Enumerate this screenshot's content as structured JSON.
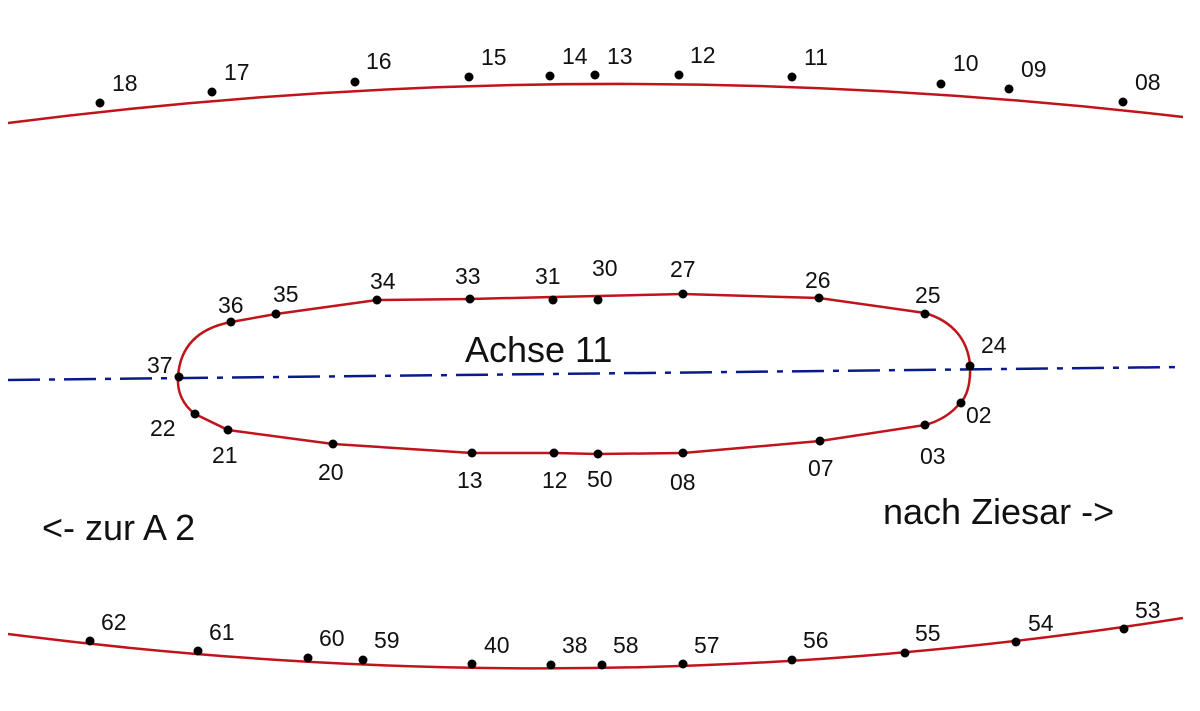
{
  "colors": {
    "road_line": "#c0141c",
    "axis_line": "#0a1a8a",
    "point": "#000000",
    "text": "#111111",
    "background": "#ffffff"
  },
  "axis_label": "Achse 11",
  "direction_left": "<- zur A 2",
  "direction_right": "nach Ziesar ->",
  "top_curve_points": [
    "18",
    "17",
    "16",
    "15",
    "14",
    "13",
    "12",
    "11",
    "10",
    "09",
    "08"
  ],
  "loop_top_points": [
    "36",
    "35",
    "34",
    "33",
    "31",
    "30",
    "27",
    "26",
    "25"
  ],
  "loop_end_points": [
    "37",
    "24"
  ],
  "loop_bottom_points": [
    "22",
    "21",
    "20",
    "13",
    "12",
    "50",
    "08",
    "07",
    "03",
    "02"
  ],
  "bottom_curve_points": [
    "62",
    "61",
    "60",
    "59",
    "40",
    "38",
    "58",
    "57",
    "56",
    "55",
    "54",
    "53"
  ]
}
